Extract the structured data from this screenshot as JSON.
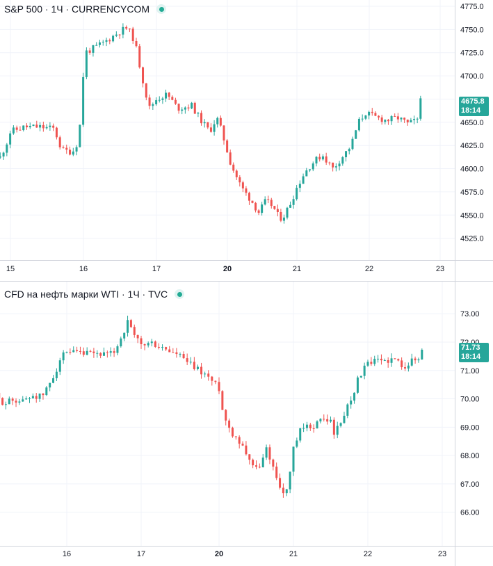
{
  "colors": {
    "up": "#26a69a",
    "down": "#ef5350",
    "grid": "#f0f3fa",
    "axis": "#d1d4dc",
    "text": "#131722"
  },
  "chart_data": [
    {
      "type": "candlestick",
      "legend": {
        "symbol": "S&P 500",
        "interval": "1Ч",
        "source": "CURRENCYCOM"
      },
      "ylim": [
        4515,
        4775
      ],
      "yticks": [
        "4775.0",
        "4750.0",
        "4725.0",
        "4700.0",
        "4675.0",
        "4650.0",
        "4625.0",
        "4600.0",
        "4575.0",
        "4550.0",
        "4525.0"
      ],
      "xticks": [
        {
          "label": "15",
          "x": 15.0
        },
        {
          "label": "16",
          "x": 16.0
        },
        {
          "label": "17",
          "x": 17.0
        },
        {
          "label": "20",
          "x": 18.0
        },
        {
          "label": "21",
          "x": 19.0
        },
        {
          "label": "22",
          "x": 20.0
        },
        {
          "label": "23",
          "x": 21.0
        }
      ],
      "last_price": {
        "value": "4675.8",
        "countdown": "18:14"
      },
      "anchors": [
        [
          14.86,
          4612
        ],
        [
          14.95,
          4628
        ],
        [
          15.0,
          4640
        ],
        [
          15.2,
          4645
        ],
        [
          15.4,
          4645
        ],
        [
          15.6,
          4643
        ],
        [
          15.7,
          4620
        ],
        [
          15.85,
          4618
        ],
        [
          15.93,
          4630
        ],
        [
          15.98,
          4670
        ],
        [
          16.01,
          4725
        ],
        [
          16.15,
          4730
        ],
        [
          16.3,
          4737
        ],
        [
          16.5,
          4748
        ],
        [
          16.6,
          4752
        ],
        [
          16.7,
          4738
        ],
        [
          16.8,
          4700
        ],
        [
          16.9,
          4665
        ],
        [
          17.0,
          4675
        ],
        [
          17.15,
          4680
        ],
        [
          17.3,
          4665
        ],
        [
          17.5,
          4668
        ],
        [
          17.6,
          4655
        ],
        [
          17.75,
          4640
        ],
        [
          17.85,
          4655
        ],
        [
          17.92,
          4640
        ],
        [
          18.05,
          4605
        ],
        [
          18.2,
          4580
        ],
        [
          18.35,
          4565
        ],
        [
          18.45,
          4553
        ],
        [
          18.55,
          4565
        ],
        [
          18.65,
          4560
        ],
        [
          18.75,
          4546
        ],
        [
          18.82,
          4550
        ],
        [
          18.92,
          4565
        ],
        [
          19.0,
          4580
        ],
        [
          19.1,
          4595
        ],
        [
          19.2,
          4605
        ],
        [
          19.35,
          4615
        ],
        [
          19.5,
          4600
        ],
        [
          19.6,
          4610
        ],
        [
          19.75,
          4625
        ],
        [
          19.85,
          4650
        ],
        [
          19.95,
          4660
        ],
        [
          20.1,
          4655
        ],
        [
          20.25,
          4652
        ],
        [
          20.4,
          4655
        ],
        [
          20.55,
          4648
        ],
        [
          20.65,
          4652
        ],
        [
          20.72,
          4650
        ],
        [
          20.75,
          4675.8
        ]
      ]
    },
    {
      "type": "candlestick",
      "legend": {
        "symbol": "CFD на нефть марки WTI",
        "interval": "1Ч",
        "source": "TVC"
      },
      "ylim": [
        65.55,
        73.3
      ],
      "yticks": [
        "73.00",
        "72.00",
        "71.00",
        "70.00",
        "69.00",
        "68.00",
        "67.00",
        "66.00"
      ],
      "xticks": [
        {
          "label": "16",
          "x": 16.0
        },
        {
          "label": "17",
          "x": 17.0
        },
        {
          "label": "20",
          "x": 18.0
        },
        {
          "label": "21",
          "x": 19.0
        },
        {
          "label": "22",
          "x": 20.0
        },
        {
          "label": "23",
          "x": 21.0
        }
      ],
      "last_price": {
        "value": "71.73",
        "countdown": "18:14"
      },
      "anchors": [
        [
          15.0,
          70.2
        ],
        [
          15.1,
          69.95
        ],
        [
          15.2,
          69.85
        ],
        [
          15.3,
          70.0
        ],
        [
          15.4,
          69.9
        ],
        [
          15.55,
          70.15
        ],
        [
          15.65,
          70.05
        ],
        [
          15.75,
          70.4
        ],
        [
          15.85,
          71.0
        ],
        [
          15.93,
          71.5
        ],
        [
          16.1,
          71.6
        ],
        [
          16.3,
          71.55
        ],
        [
          16.45,
          71.6
        ],
        [
          16.55,
          71.5
        ],
        [
          16.62,
          71.6
        ],
        [
          16.72,
          72.1
        ],
        [
          16.82,
          72.7
        ],
        [
          16.9,
          72.2
        ],
        [
          17.0,
          71.9
        ],
        [
          17.15,
          71.95
        ],
        [
          17.25,
          71.8
        ],
        [
          17.35,
          71.7
        ],
        [
          17.5,
          71.5
        ],
        [
          17.62,
          71.2
        ],
        [
          17.75,
          71.0
        ],
        [
          17.85,
          70.8
        ],
        [
          17.95,
          70.5
        ],
        [
          18.02,
          70.35
        ],
        [
          18.05,
          69.5
        ],
        [
          18.15,
          68.9
        ],
        [
          18.25,
          68.6
        ],
        [
          18.35,
          68.2
        ],
        [
          18.45,
          67.7
        ],
        [
          18.5,
          67.5
        ],
        [
          18.58,
          67.8
        ],
        [
          18.65,
          68.3
        ],
        [
          18.72,
          67.6
        ],
        [
          18.8,
          67.1
        ],
        [
          18.88,
          66.5
        ],
        [
          18.95,
          67.3
        ],
        [
          19.0,
          68.2
        ],
        [
          19.1,
          68.9
        ],
        [
          19.2,
          69.0
        ],
        [
          19.3,
          69.1
        ],
        [
          19.4,
          69.3
        ],
        [
          19.5,
          69.2
        ],
        [
          19.55,
          68.8
        ],
        [
          19.62,
          69.05
        ],
        [
          19.7,
          69.6
        ],
        [
          19.8,
          70.2
        ],
        [
          19.9,
          70.9
        ],
        [
          20.0,
          71.2
        ],
        [
          20.1,
          71.3
        ],
        [
          20.2,
          71.35
        ],
        [
          20.3,
          71.4
        ],
        [
          20.4,
          71.3
        ],
        [
          20.5,
          71.2
        ],
        [
          20.6,
          71.35
        ],
        [
          20.72,
          71.4
        ],
        [
          20.75,
          71.73
        ]
      ]
    }
  ]
}
